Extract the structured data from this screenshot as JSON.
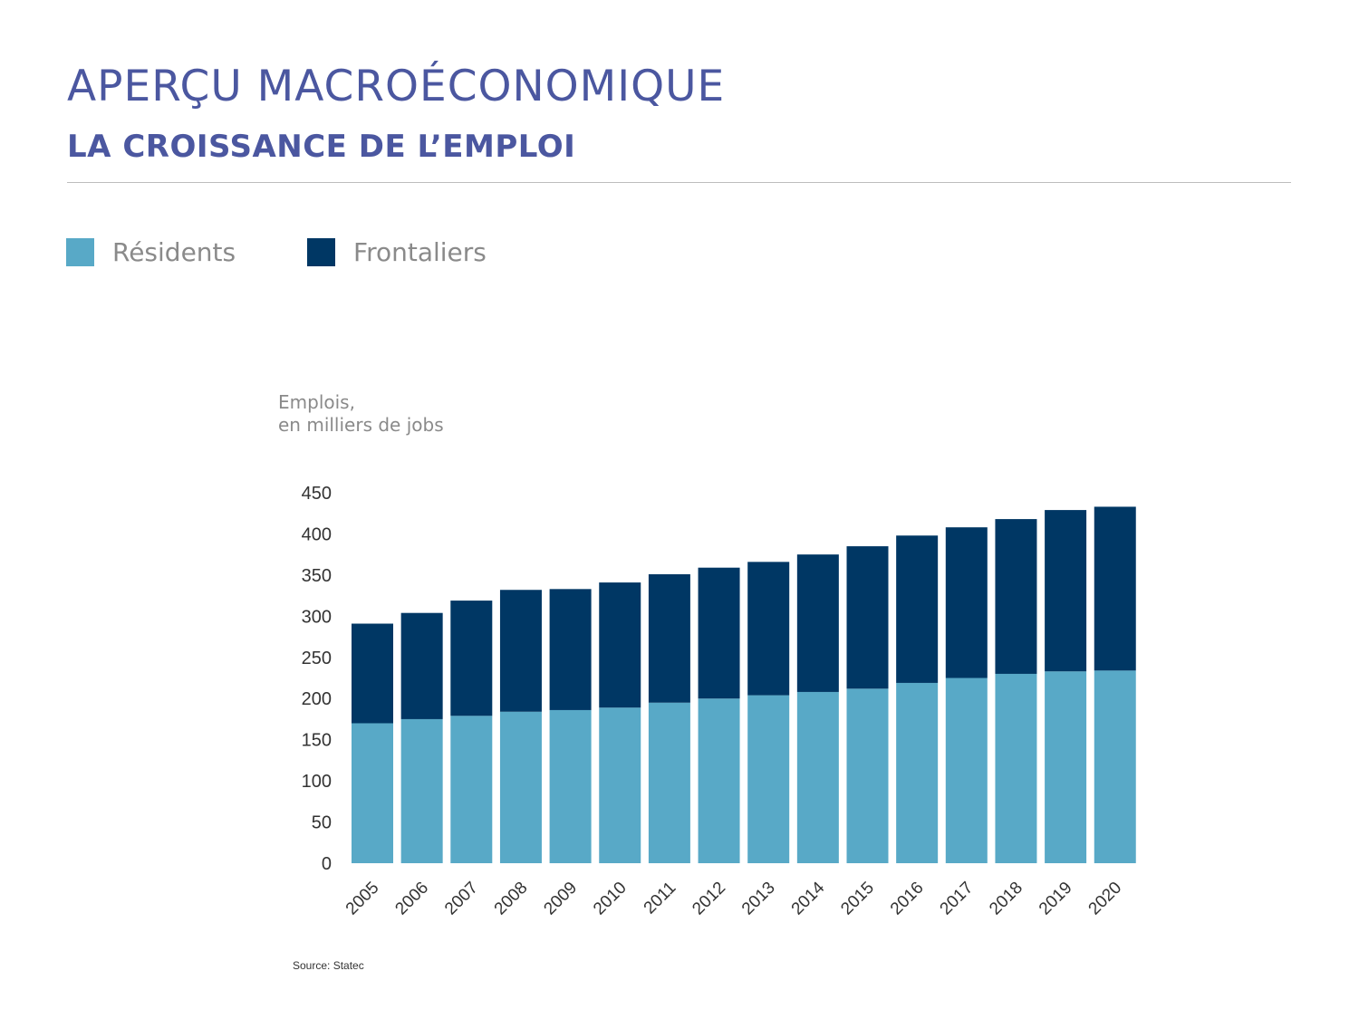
{
  "header": {
    "title": "APERÇU MACROÉCONOMIQUE",
    "subtitle": "LA CROISSANCE DE L’EMPLOI"
  },
  "legend": [
    {
      "label": "Résidents",
      "color": "#58a9c7"
    },
    {
      "label": "Frontaliers",
      "color": "#003764"
    }
  ],
  "source": "Source: Statec",
  "chart_data": {
    "type": "bar",
    "stacked": true,
    "ylabel": [
      "Emplois,",
      "en milliers de jobs"
    ],
    "xlabel": "",
    "ylim": [
      0,
      450
    ],
    "yticks": [
      0,
      50,
      100,
      150,
      200,
      250,
      300,
      350,
      400,
      450
    ],
    "grid": false,
    "legend_position": "top-left",
    "categories": [
      "2005",
      "2006",
      "2007",
      "2008",
      "2009",
      "2010",
      "2011",
      "2012",
      "2013",
      "2014",
      "2015",
      "2016",
      "2017",
      "2018",
      "2019",
      "2020"
    ],
    "series": [
      {
        "name": "Résidents",
        "color": "#58a9c7",
        "values": [
          170,
          175,
          179,
          184,
          186,
          189,
          195,
          200,
          204,
          208,
          212,
          219,
          225,
          230,
          233,
          234
        ]
      },
      {
        "name": "Frontaliers",
        "color": "#003764",
        "values": [
          121,
          129,
          140,
          148,
          147,
          152,
          156,
          159,
          162,
          167,
          173,
          179,
          183,
          188,
          196,
          199
        ]
      }
    ]
  }
}
